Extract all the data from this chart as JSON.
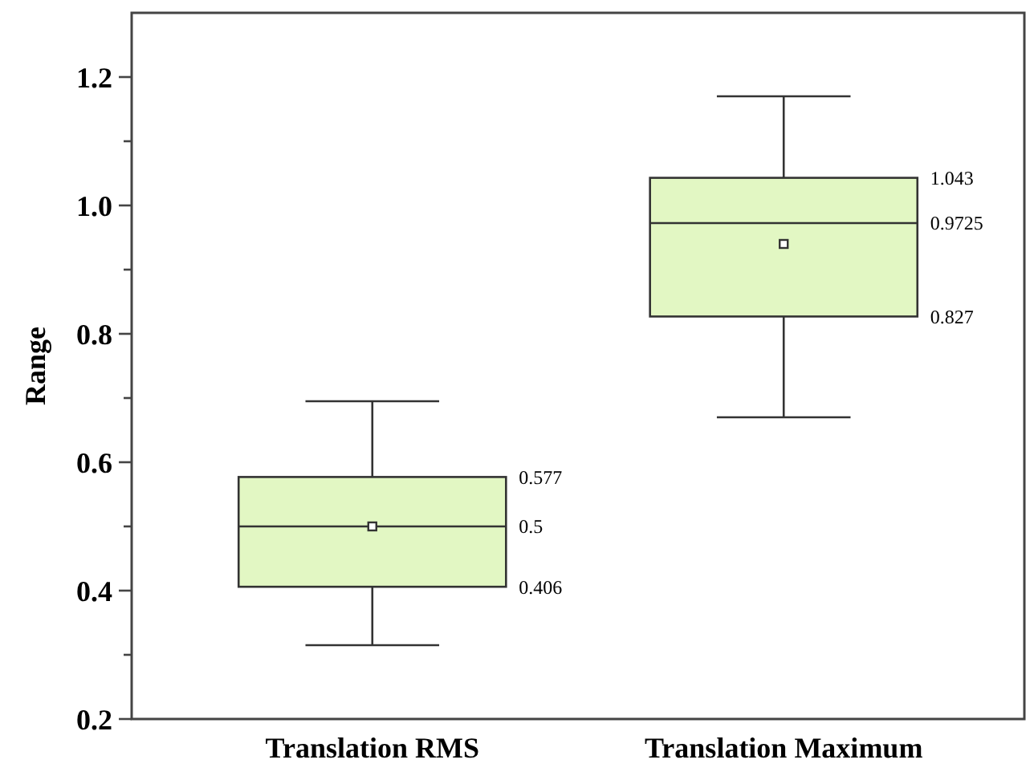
{
  "chart_data": {
    "type": "box",
    "ylabel": "Range",
    "categories": [
      "Translation RMS",
      "Translation Maximum"
    ],
    "series": [
      {
        "color": "#e2f7c3",
        "boxes": [
          {
            "low": 0.315,
            "q1": 0.406,
            "median": 0.5,
            "q3": 0.577,
            "high": 0.695,
            "mean": 0.5
          },
          {
            "low": 0.67,
            "q1": 0.827,
            "median": 0.9725,
            "q3": 1.043,
            "high": 1.17,
            "mean": 0.94
          }
        ]
      }
    ],
    "ylim": [
      0.2,
      1.3
    ],
    "yticks": [
      0.2,
      {
        "value": 0.3,
        "label": null
      },
      0.4,
      {
        "value": 0.5,
        "label": null
      },
      0.6,
      {
        "value": 0.7,
        "label": null
      },
      0.8,
      {
        "value": 0.9,
        "label": null
      },
      {
        "value": 1.0,
        "label": "1.0"
      },
      {
        "value": 1.1,
        "label": null
      },
      1.2
    ],
    "annotations": [
      "0.577",
      "0.5",
      "0.406",
      "1.043",
      "0.9725",
      "0.827"
    ],
    "grid": false
  }
}
